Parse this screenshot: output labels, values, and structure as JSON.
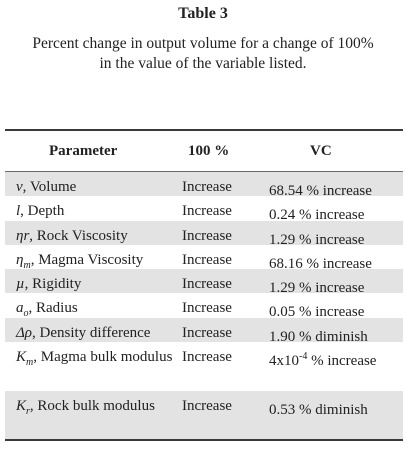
{
  "table": {
    "number": "Table 3",
    "caption_line1": "Percent change in output volume for a change of 100%",
    "caption_line2": "in the value of the variable listed.",
    "headers": {
      "parameter": "Parameter",
      "change": "100 %",
      "vc": "VC"
    },
    "rows": [
      {
        "symbol": "v",
        "sub": "",
        "sup": "",
        "name": ", Volume",
        "change": "Increase",
        "vc_pre": "68.54 % increase",
        "vc_sup": "",
        "vc_post": "",
        "shaded": true
      },
      {
        "symbol": "l",
        "sub": "",
        "sup": "",
        "name": ", Depth",
        "change": "Increase",
        "vc_pre": "0.24 % increase",
        "vc_sup": "",
        "vc_post": "",
        "shaded": false
      },
      {
        "symbol": "ηr",
        "sub": "",
        "sup": "",
        "name": ", Rock Viscosity",
        "change": "Increase",
        "vc_pre": "1.29 % increase",
        "vc_sup": "",
        "vc_post": "",
        "shaded": true
      },
      {
        "symbol": "η",
        "sub": "m",
        "sup": "",
        "name": ", Magma Viscosity",
        "change": "Increase",
        "vc_pre": "68.16 % increase",
        "vc_sup": "",
        "vc_post": "",
        "shaded": false
      },
      {
        "symbol": "µ",
        "sub": "",
        "sup": "",
        "name": ", Rigidity",
        "change": "Increase",
        "vc_pre": "1.29 % increase",
        "vc_sup": "",
        "vc_post": "",
        "shaded": true
      },
      {
        "symbol": "a",
        "sub": "o",
        "sup": "",
        "name": ", Radius",
        "change": "Increase",
        "vc_pre": "0.05 % increase",
        "vc_sup": "",
        "vc_post": "",
        "shaded": false
      },
      {
        "symbol": "Δρ",
        "sub": "",
        "sup": "",
        "name": ", Density difference",
        "change": "Increase",
        "vc_pre": "1.90 % diminish",
        "vc_sup": "",
        "vc_post": "",
        "shaded": true
      },
      {
        "symbol": "K",
        "sub": "m",
        "sup": "",
        "name": ", Magma bulk modulus",
        "change": "Increase",
        "vc_pre": "4x10",
        "vc_sup": "-4",
        "vc_post": " % increase",
        "shaded": false
      },
      {
        "symbol": "K",
        "sub": "r",
        "sup": "",
        "name": ", Rock bulk modulus",
        "change": "Increase",
        "vc_pre": "0.53 % diminish",
        "vc_sup": "",
        "vc_post": "",
        "shaded": true
      }
    ]
  }
}
